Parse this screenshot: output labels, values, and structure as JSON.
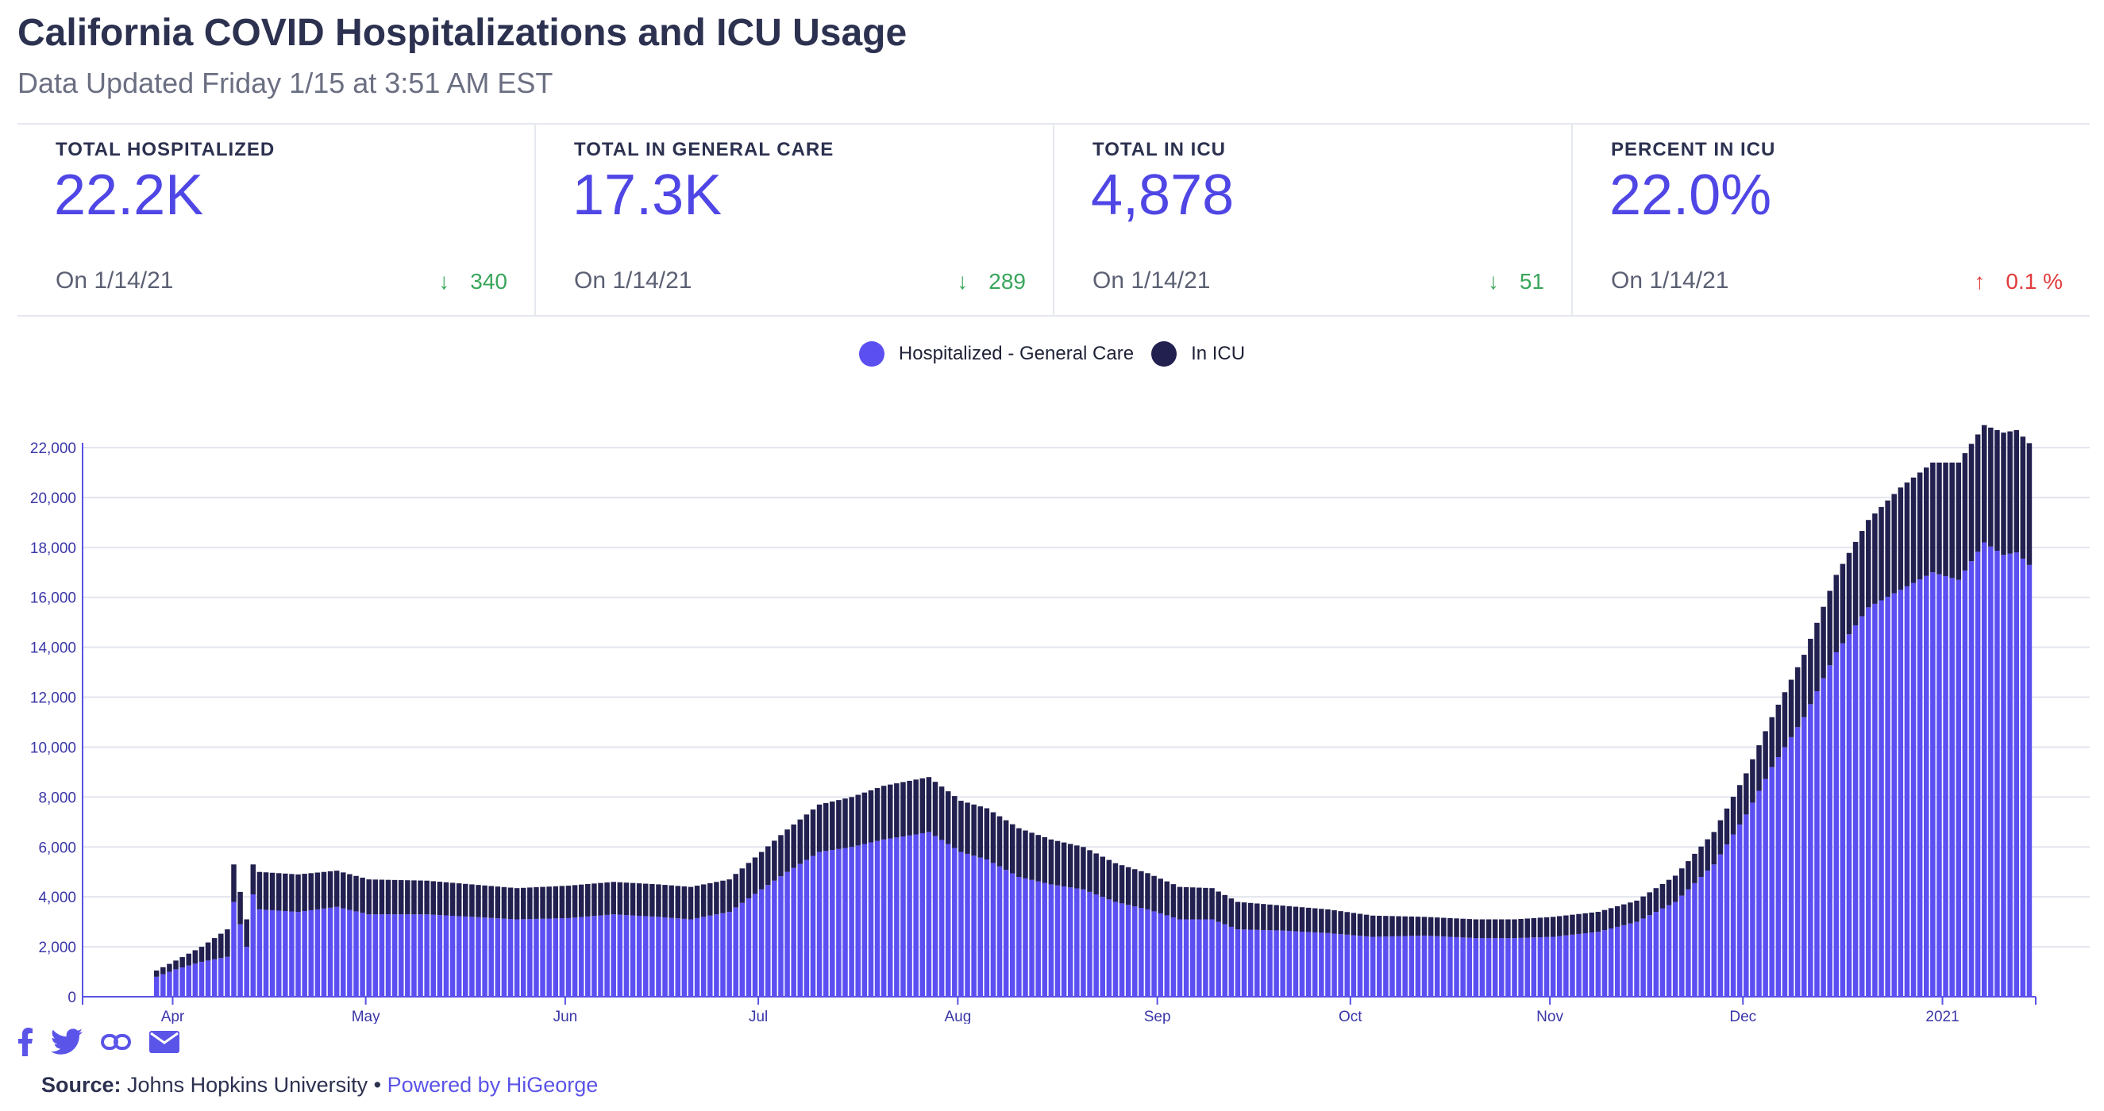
{
  "header": {
    "title": "California COVID Hospitalizations and ICU Usage",
    "subtitle": "Data Updated Friday 1/15 at 3:51 AM EST"
  },
  "stats": [
    {
      "label": "TOTAL HOSPITALIZED",
      "value": "22.2K",
      "date": "On 1/14/21",
      "direction": "down",
      "arrow": "↓",
      "change": "340"
    },
    {
      "label": "TOTAL IN GENERAL CARE",
      "value": "17.3K",
      "date": "On 1/14/21",
      "direction": "down",
      "arrow": "↓",
      "change": "289"
    },
    {
      "label": "TOTAL IN ICU",
      "value": "4,878",
      "date": "On 1/14/21",
      "direction": "down",
      "arrow": "↓",
      "change": "51"
    },
    {
      "label": "PERCENT IN ICU",
      "value": "22.0%",
      "date": "On 1/14/21",
      "direction": "up",
      "arrow": "↑",
      "change": "0.1 %"
    }
  ],
  "colors": {
    "general": "#5b4ff2",
    "icu": "#22204f",
    "grid": "#e3e5ee",
    "axis": "#5a52e6",
    "down": "#3aa65c",
    "up": "#e03c3c"
  },
  "footer": {
    "icons": [
      "facebook-icon",
      "twitter-icon",
      "link-icon",
      "mail-icon"
    ],
    "source_label": "Source:",
    "source_text": " Johns Hopkins University • ",
    "powered": "Powered by HiGeorge"
  },
  "chart_data": {
    "type": "bar",
    "stacked": true,
    "title": "",
    "xlabel": "",
    "ylabel": "",
    "ylim": [
      0,
      22000
    ],
    "yticks": [
      0,
      2000,
      4000,
      6000,
      8000,
      10000,
      12000,
      14000,
      16000,
      18000,
      20000,
      22000
    ],
    "xrange": [
      "2020-03-18",
      "2021-01-14"
    ],
    "x_ticks": [
      {
        "label": "Apr",
        "date": "2020-04-01"
      },
      {
        "label": "May",
        "date": "2020-05-01"
      },
      {
        "label": "Jun",
        "date": "2020-06-01"
      },
      {
        "label": "Jul",
        "date": "2020-07-01"
      },
      {
        "label": "Aug",
        "date": "2020-08-01"
      },
      {
        "label": "Sep",
        "date": "2020-09-01"
      },
      {
        "label": "Oct",
        "date": "2020-10-01"
      },
      {
        "label": "Nov",
        "date": "2020-11-01"
      },
      {
        "label": "Dec",
        "date": "2020-12-01"
      },
      {
        "label": "2021",
        "date": "2021-01-01"
      }
    ],
    "legend_position": "top-center",
    "series": [
      {
        "name": "Hospitalized - General Care",
        "color": "#5b4ff2",
        "points": [
          [
            "2020-03-18",
            0
          ],
          [
            "2020-03-28",
            0
          ],
          [
            "2020-03-29",
            800
          ],
          [
            "2020-04-01",
            1100
          ],
          [
            "2020-04-05",
            1400
          ],
          [
            "2020-04-09",
            1600
          ],
          [
            "2020-04-10",
            3800
          ],
          [
            "2020-04-12",
            2000
          ],
          [
            "2020-04-13",
            4100
          ],
          [
            "2020-04-14",
            3500
          ],
          [
            "2020-04-20",
            3400
          ],
          [
            "2020-04-26",
            3600
          ],
          [
            "2020-05-01",
            3300
          ],
          [
            "2020-05-10",
            3300
          ],
          [
            "2020-05-17",
            3200
          ],
          [
            "2020-05-24",
            3100
          ],
          [
            "2020-06-01",
            3150
          ],
          [
            "2020-06-08",
            3300
          ],
          [
            "2020-06-15",
            3200
          ],
          [
            "2020-06-20",
            3100
          ],
          [
            "2020-06-26",
            3400
          ],
          [
            "2020-07-01",
            4300
          ],
          [
            "2020-07-05",
            5000
          ],
          [
            "2020-07-10",
            5800
          ],
          [
            "2020-07-15",
            6000
          ],
          [
            "2020-07-20",
            6300
          ],
          [
            "2020-07-25",
            6500
          ],
          [
            "2020-07-27",
            6600
          ],
          [
            "2020-08-01",
            5800
          ],
          [
            "2020-08-05",
            5500
          ],
          [
            "2020-08-10",
            4800
          ],
          [
            "2020-08-15",
            4500
          ],
          [
            "2020-08-20",
            4300
          ],
          [
            "2020-08-25",
            3800
          ],
          [
            "2020-08-30",
            3500
          ],
          [
            "2020-09-04",
            3100
          ],
          [
            "2020-09-09",
            3100
          ],
          [
            "2020-09-13",
            2700
          ],
          [
            "2020-09-20",
            2650
          ],
          [
            "2020-09-27",
            2550
          ],
          [
            "2020-10-04",
            2400
          ],
          [
            "2020-10-12",
            2450
          ],
          [
            "2020-10-20",
            2350
          ],
          [
            "2020-10-26",
            2350
          ],
          [
            "2020-11-01",
            2400
          ],
          [
            "2020-11-08",
            2600
          ],
          [
            "2020-11-14",
            3000
          ],
          [
            "2020-11-20",
            3800
          ],
          [
            "2020-11-26",
            5300
          ],
          [
            "2020-12-01",
            7300
          ],
          [
            "2020-12-05",
            9200
          ],
          [
            "2020-12-10",
            11200
          ],
          [
            "2020-12-15",
            13800
          ],
          [
            "2020-12-20",
            15600
          ],
          [
            "2020-12-25",
            16300
          ],
          [
            "2020-12-30",
            17000
          ],
          [
            "2021-01-03",
            16700
          ],
          [
            "2021-01-07",
            18200
          ],
          [
            "2021-01-10",
            17700
          ],
          [
            "2021-01-12",
            17800
          ],
          [
            "2021-01-14",
            17300
          ]
        ]
      },
      {
        "name": "In ICU",
        "color": "#22204f",
        "points": [
          [
            "2020-03-18",
            0
          ],
          [
            "2020-03-28",
            0
          ],
          [
            "2020-03-29",
            250
          ],
          [
            "2020-04-01",
            350
          ],
          [
            "2020-04-05",
            600
          ],
          [
            "2020-04-09",
            1100
          ],
          [
            "2020-04-10",
            1500
          ],
          [
            "2020-04-12",
            1100
          ],
          [
            "2020-04-13",
            1200
          ],
          [
            "2020-04-14",
            1500
          ],
          [
            "2020-04-20",
            1500
          ],
          [
            "2020-04-26",
            1450
          ],
          [
            "2020-05-01",
            1400
          ],
          [
            "2020-05-10",
            1350
          ],
          [
            "2020-05-17",
            1300
          ],
          [
            "2020-05-24",
            1250
          ],
          [
            "2020-06-01",
            1300
          ],
          [
            "2020-06-08",
            1300
          ],
          [
            "2020-06-15",
            1300
          ],
          [
            "2020-06-20",
            1300
          ],
          [
            "2020-06-26",
            1300
          ],
          [
            "2020-07-01",
            1500
          ],
          [
            "2020-07-05",
            1700
          ],
          [
            "2020-07-10",
            1900
          ],
          [
            "2020-07-15",
            2000
          ],
          [
            "2020-07-20",
            2150
          ],
          [
            "2020-07-25",
            2200
          ],
          [
            "2020-07-27",
            2200
          ],
          [
            "2020-08-01",
            2050
          ],
          [
            "2020-08-05",
            2050
          ],
          [
            "2020-08-10",
            1950
          ],
          [
            "2020-08-15",
            1800
          ],
          [
            "2020-08-20",
            1700
          ],
          [
            "2020-08-25",
            1550
          ],
          [
            "2020-08-30",
            1450
          ],
          [
            "2020-09-04",
            1300
          ],
          [
            "2020-09-09",
            1250
          ],
          [
            "2020-09-13",
            1100
          ],
          [
            "2020-09-20",
            1000
          ],
          [
            "2020-09-27",
            950
          ],
          [
            "2020-10-04",
            850
          ],
          [
            "2020-10-12",
            750
          ],
          [
            "2020-10-20",
            750
          ],
          [
            "2020-10-26",
            750
          ],
          [
            "2020-11-01",
            800
          ],
          [
            "2020-11-08",
            800
          ],
          [
            "2020-11-14",
            850
          ],
          [
            "2020-11-20",
            1050
          ],
          [
            "2020-11-26",
            1300
          ],
          [
            "2020-12-01",
            1650
          ],
          [
            "2020-12-05",
            2000
          ],
          [
            "2020-12-10",
            2500
          ],
          [
            "2020-12-15",
            3100
          ],
          [
            "2020-12-20",
            3500
          ],
          [
            "2020-12-25",
            4100
          ],
          [
            "2020-12-30",
            4400
          ],
          [
            "2021-01-03",
            4700
          ],
          [
            "2021-01-07",
            4700
          ],
          [
            "2021-01-10",
            4900
          ],
          [
            "2021-01-12",
            4900
          ],
          [
            "2021-01-14",
            4878
          ]
        ]
      }
    ]
  }
}
